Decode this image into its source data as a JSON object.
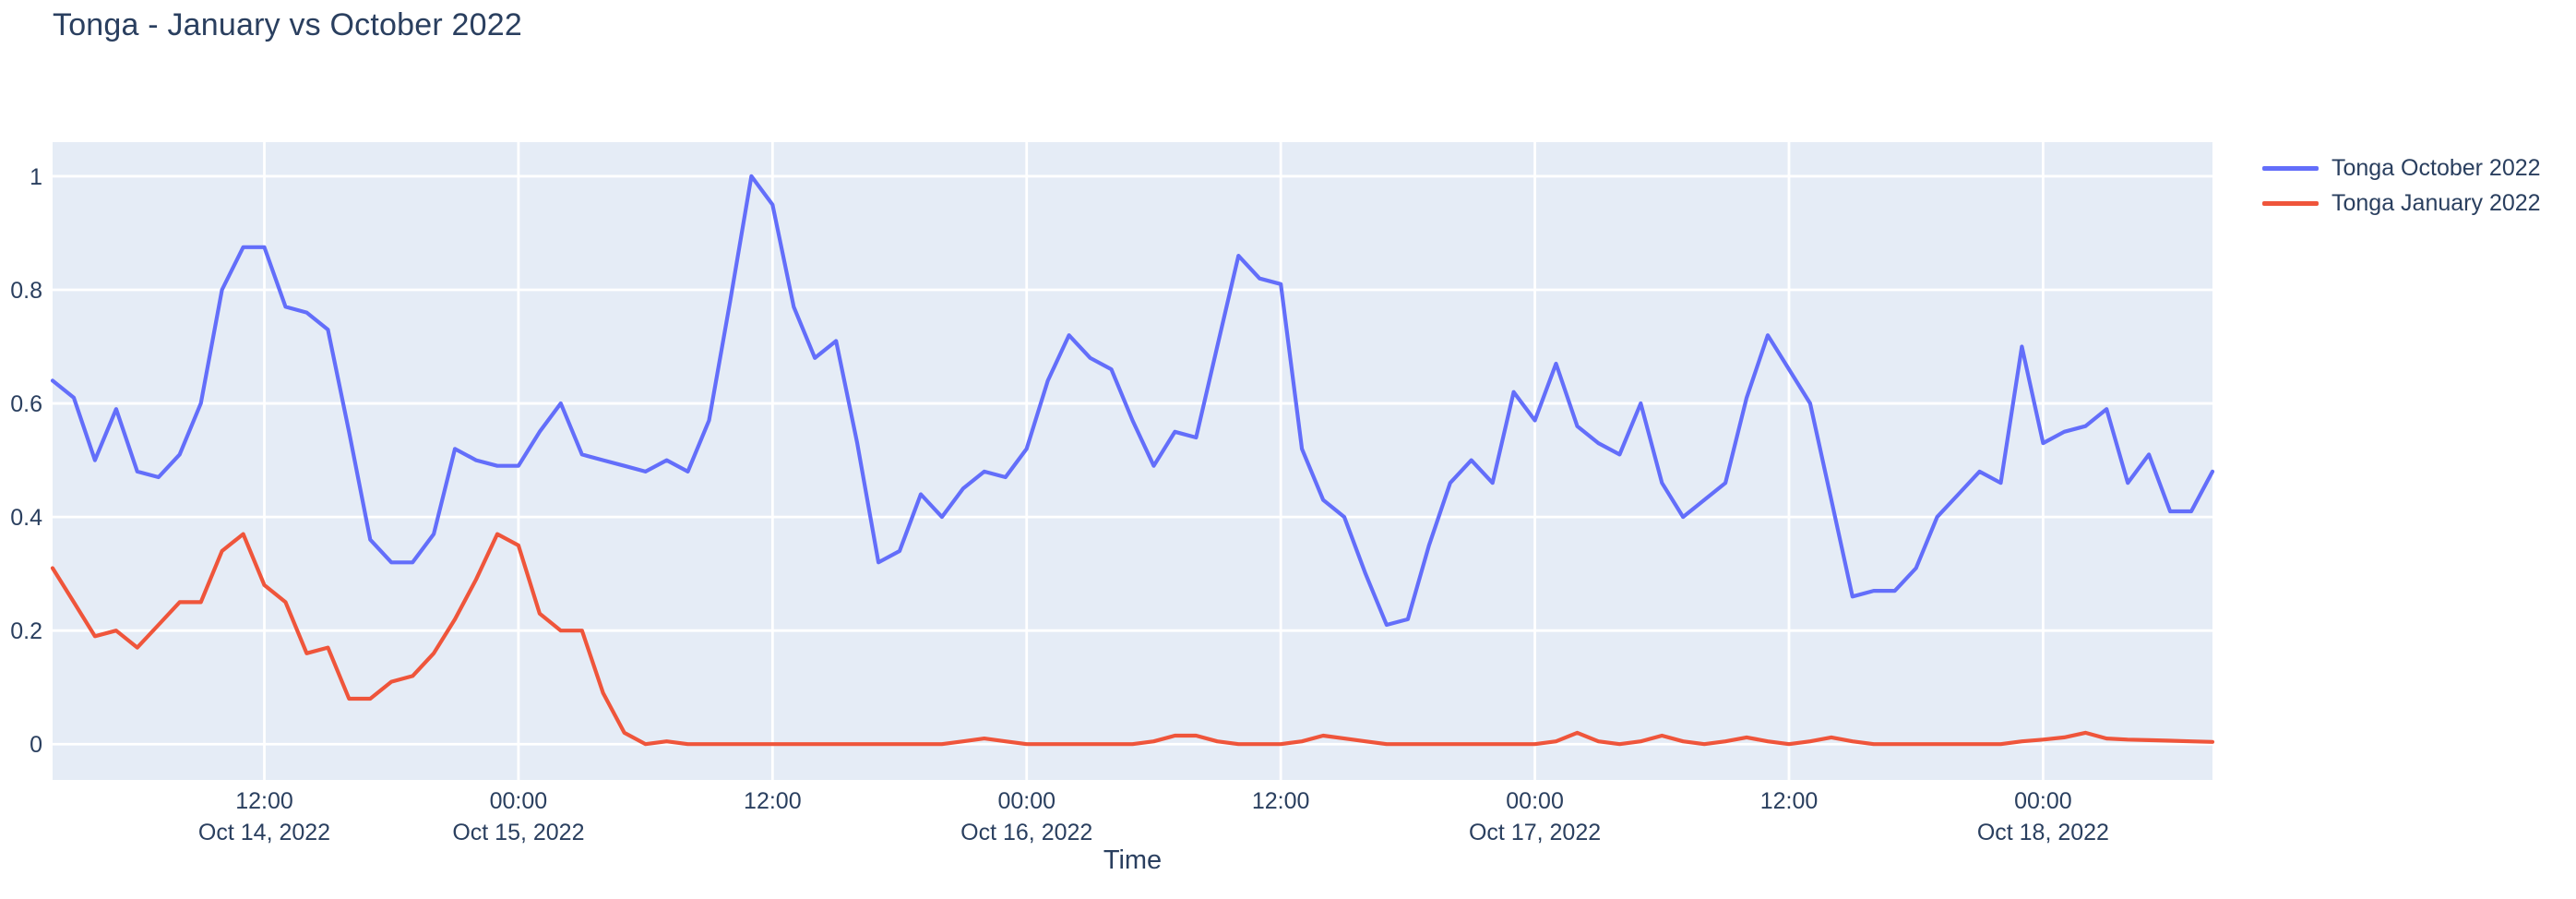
{
  "page": {
    "background": "#ffffff",
    "text_color": "#2a3f5f"
  },
  "title": {
    "text": "Tonga - January vs October 2022"
  },
  "legend": {
    "items": [
      {
        "label": "Tonga October 2022",
        "color": "#636efa"
      },
      {
        "label": "Tonga January 2022",
        "color": "#ef553b"
      }
    ]
  },
  "chart_data": {
    "type": "line",
    "title": "Tonga - January vs October 2022",
    "xlabel": "Time",
    "ylabel": "",
    "plot_bg": "#e5ecf6",
    "grid_color": "#ffffff",
    "grid": true,
    "legend_position": "right-outside-top",
    "x_start": "2022-10-14 02:00",
    "x_step_hours": 1,
    "n_points": 103,
    "x_axis": {
      "range_hours": [
        2,
        104
      ],
      "ticks": [
        {
          "h": 12,
          "time": "12:00",
          "date": "Oct 14, 2022"
        },
        {
          "h": 24,
          "time": "00:00",
          "date": "Oct 15, 2022"
        },
        {
          "h": 36,
          "time": "12:00",
          "date": ""
        },
        {
          "h": 48,
          "time": "00:00",
          "date": "Oct 16, 2022"
        },
        {
          "h": 60,
          "time": "12:00",
          "date": ""
        },
        {
          "h": 72,
          "time": "00:00",
          "date": "Oct 17, 2022"
        },
        {
          "h": 84,
          "time": "12:00",
          "date": ""
        },
        {
          "h": 96,
          "time": "00:00",
          "date": "Oct 18, 2022"
        }
      ]
    },
    "y_axis": {
      "range": [
        -0.063,
        1.06
      ],
      "tick_values": [
        0,
        0.2,
        0.4,
        0.6,
        0.8,
        1
      ],
      "tick_labels": [
        "0",
        "0.2",
        "0.4",
        "0.6",
        "0.8",
        "1"
      ]
    },
    "series": [
      {
        "name": "Tonga October 2022",
        "color": "#636efa",
        "values": [
          0.64,
          0.61,
          0.5,
          0.59,
          0.48,
          0.47,
          0.51,
          0.6,
          0.8,
          0.875,
          0.875,
          0.77,
          0.76,
          0.73,
          0.55,
          0.36,
          0.32,
          0.32,
          0.37,
          0.52,
          0.5,
          0.49,
          0.49,
          0.55,
          0.6,
          0.51,
          0.5,
          0.49,
          0.48,
          0.5,
          0.48,
          0.57,
          0.78,
          1.0,
          0.95,
          0.77,
          0.68,
          0.71,
          0.53,
          0.32,
          0.34,
          0.44,
          0.4,
          0.45,
          0.48,
          0.47,
          0.52,
          0.64,
          0.72,
          0.68,
          0.66,
          0.57,
          0.49,
          0.55,
          0.54,
          0.7,
          0.86,
          0.82,
          0.81,
          0.52,
          0.43,
          0.4,
          0.3,
          0.21,
          0.22,
          0.35,
          0.46,
          0.5,
          0.46,
          0.62,
          0.57,
          0.67,
          0.56,
          0.53,
          0.51,
          0.6,
          0.46,
          0.4,
          0.43,
          0.46,
          0.61,
          0.72,
          0.66,
          0.6,
          0.43,
          0.26,
          0.27,
          0.27,
          0.31,
          0.4,
          0.44,
          0.48,
          0.46,
          0.7,
          0.53,
          0.55,
          0.56,
          0.59,
          0.46,
          0.51,
          0.41,
          0.41,
          0.48
        ]
      },
      {
        "name": "Tonga January 2022",
        "color": "#ef553b",
        "values": [
          0.31,
          0.25,
          0.19,
          0.2,
          0.17,
          0.21,
          0.25,
          0.25,
          0.34,
          0.37,
          0.28,
          0.25,
          0.16,
          0.17,
          0.08,
          0.08,
          0.11,
          0.12,
          0.16,
          0.22,
          0.29,
          0.37,
          0.35,
          0.23,
          0.2,
          0.2,
          0.09,
          0.02,
          0,
          0.005,
          0,
          0,
          0,
          0,
          0,
          0,
          0,
          0,
          0,
          0,
          0,
          0,
          0,
          0.005,
          0.01,
          0.005,
          0,
          0,
          0,
          0,
          0,
          0,
          0.005,
          0.015,
          0.015,
          0.005,
          0,
          0,
          0,
          0.005,
          0.015,
          0.01,
          0.005,
          0,
          0,
          0,
          0,
          0,
          0,
          0,
          0,
          0.005,
          0.02,
          0.005,
          0,
          0.005,
          0.015,
          0.005,
          0,
          0.005,
          0.012,
          0.005,
          0,
          0.005,
          0.012,
          0.005,
          0,
          0,
          0,
          0,
          0,
          0,
          0,
          0.005,
          0.008,
          0.012,
          0.02,
          0.01,
          0.008,
          0.007,
          0.006,
          0.005,
          0.004
        ]
      }
    ]
  }
}
